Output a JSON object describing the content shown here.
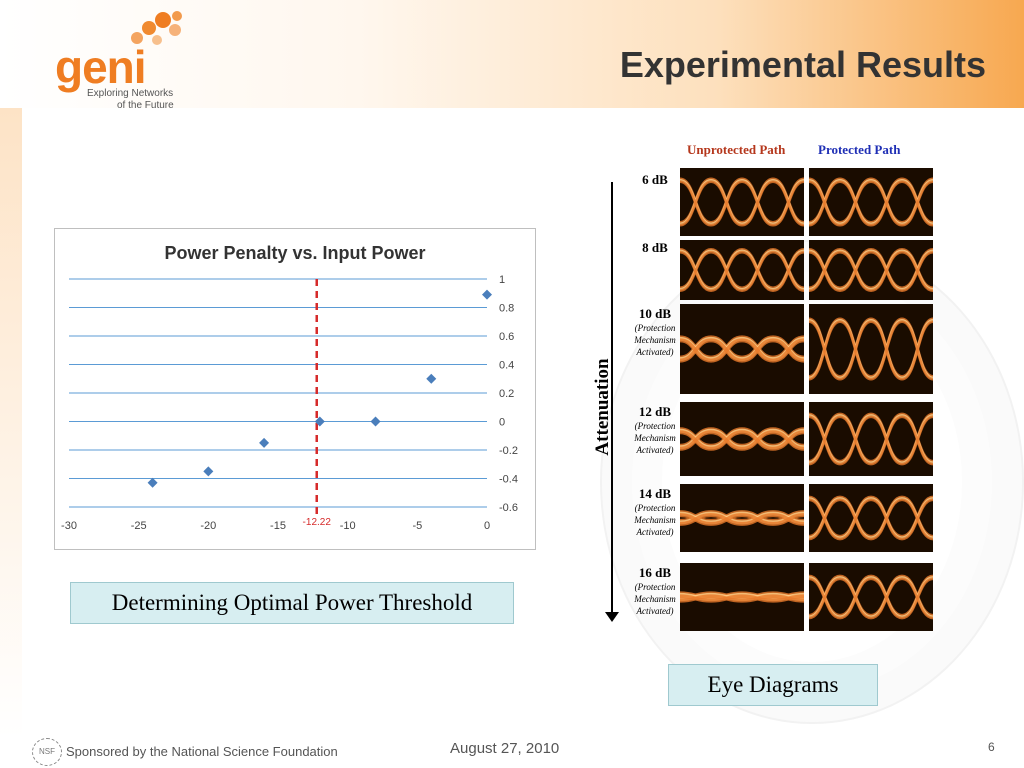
{
  "slide": {
    "title": "Experimental Results",
    "logo": {
      "text": "geni",
      "tagline_line1": "Exploring Networks",
      "tagline_line2": "of the Future"
    },
    "footer": {
      "sponsor": "Sponsored by the National Science Foundation",
      "date": "August 27, 2010",
      "page": "6",
      "nsf_mark": "NSF"
    }
  },
  "chart_data": {
    "type": "scatter",
    "title": "Power Penalty vs. Input Power",
    "xlim": [
      -30,
      0
    ],
    "ylim": [
      -0.6,
      1
    ],
    "x_ticks": [
      "-30",
      "-25",
      "-20",
      "-15",
      "-10",
      "-5",
      "0"
    ],
    "y_ticks": [
      "1",
      "0.8",
      "0.6",
      "0.4",
      "0.2",
      "0",
      "-0.2",
      "-0.4",
      "-0.6"
    ],
    "points": [
      {
        "x": -24,
        "y": -0.43
      },
      {
        "x": -20,
        "y": -0.35
      },
      {
        "x": -16,
        "y": -0.15
      },
      {
        "x": -12,
        "y": 0.0
      },
      {
        "x": -8,
        "y": 0.0
      },
      {
        "x": -4,
        "y": 0.3
      },
      {
        "x": 0,
        "y": 0.89
      }
    ],
    "threshold": {
      "x": -12.22,
      "label": "-12.22",
      "color": "#d62a2a"
    },
    "marker_color": "#4a7ebb",
    "grid": true
  },
  "captions": {
    "left": "Determining Optimal Power Threshold",
    "right": "Eye Diagrams"
  },
  "eye_diagrams": {
    "col_unprotected": "Unprotected Path",
    "col_protected": "Protected Path",
    "axis_label": "Attenuation",
    "colors": {
      "unprotected_header": "#b5371c",
      "protected_header": "#1f2fb5"
    },
    "rows": [
      {
        "db": "6 dB",
        "note": []
      },
      {
        "db": "8 dB",
        "note": []
      },
      {
        "db": "10 dB",
        "note": [
          "(Protection",
          "Mechanism",
          "Activated)"
        ]
      },
      {
        "db": "12 dB",
        "note": [
          "(Protection",
          "Mechanism",
          "Activated)"
        ]
      },
      {
        "db": "14 dB",
        "note": [
          "(Protection",
          "Mechanism",
          "Activated)"
        ]
      },
      {
        "db": "16 dB",
        "note": [
          "(Protection",
          "Mechanism",
          "Activated)"
        ]
      }
    ]
  }
}
